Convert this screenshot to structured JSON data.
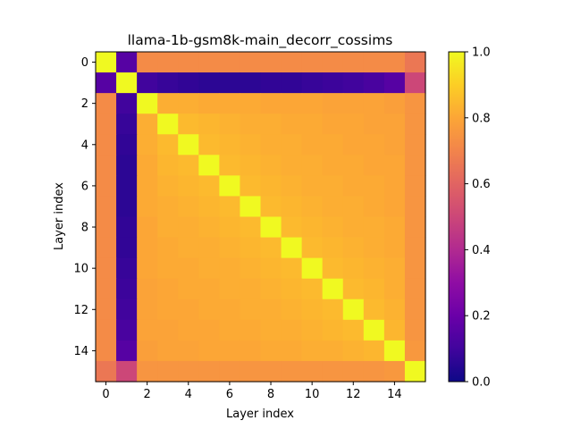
{
  "chart_data": {
    "type": "heatmap",
    "title": "llama-1b-gsm8k-main_decorr_cossims",
    "xlabel": "Layer index",
    "ylabel": "Layer index",
    "x_ticks": [
      0,
      2,
      4,
      6,
      8,
      10,
      12,
      14
    ],
    "y_ticks": [
      0,
      2,
      4,
      6,
      8,
      10,
      12,
      14
    ],
    "x_tick_labels": [
      "0",
      "2",
      "4",
      "6",
      "8",
      "10",
      "12",
      "14"
    ],
    "y_tick_labels": [
      "0",
      "2",
      "4",
      "6",
      "8",
      "10",
      "12",
      "14"
    ],
    "colorbar": {
      "colormap": "plasma",
      "range": [
        0.0,
        1.0
      ],
      "ticks": [
        0.0,
        0.2,
        0.4,
        0.6,
        0.8,
        1.0
      ],
      "tick_labels": [
        "0.0",
        "0.2",
        "0.4",
        "0.6",
        "0.8",
        "1.0"
      ]
    },
    "size": 16,
    "matrix": [
      [
        1.0,
        0.15,
        0.72,
        0.72,
        0.72,
        0.72,
        0.72,
        0.72,
        0.72,
        0.72,
        0.72,
        0.72,
        0.72,
        0.72,
        0.72,
        0.66
      ],
      [
        0.15,
        1.0,
        0.1,
        0.08,
        0.07,
        0.06,
        0.06,
        0.06,
        0.07,
        0.07,
        0.08,
        0.09,
        0.1,
        0.12,
        0.15,
        0.5
      ],
      [
        0.72,
        0.1,
        1.0,
        0.82,
        0.82,
        0.81,
        0.81,
        0.81,
        0.8,
        0.8,
        0.8,
        0.79,
        0.79,
        0.79,
        0.78,
        0.75
      ],
      [
        0.72,
        0.08,
        0.82,
        1.0,
        0.85,
        0.84,
        0.83,
        0.82,
        0.82,
        0.81,
        0.81,
        0.8,
        0.8,
        0.79,
        0.79,
        0.75
      ],
      [
        0.72,
        0.07,
        0.82,
        0.85,
        1.0,
        0.85,
        0.84,
        0.83,
        0.82,
        0.82,
        0.81,
        0.81,
        0.8,
        0.8,
        0.79,
        0.75
      ],
      [
        0.72,
        0.06,
        0.81,
        0.84,
        0.85,
        1.0,
        0.85,
        0.84,
        0.83,
        0.82,
        0.82,
        0.81,
        0.81,
        0.8,
        0.8,
        0.75
      ],
      [
        0.72,
        0.06,
        0.81,
        0.83,
        0.84,
        0.85,
        1.0,
        0.85,
        0.84,
        0.83,
        0.82,
        0.82,
        0.81,
        0.81,
        0.8,
        0.75
      ],
      [
        0.72,
        0.06,
        0.81,
        0.82,
        0.83,
        0.84,
        0.85,
        1.0,
        0.85,
        0.84,
        0.83,
        0.82,
        0.82,
        0.81,
        0.8,
        0.75
      ],
      [
        0.72,
        0.07,
        0.8,
        0.82,
        0.82,
        0.83,
        0.84,
        0.85,
        1.0,
        0.85,
        0.84,
        0.83,
        0.82,
        0.82,
        0.81,
        0.75
      ],
      [
        0.72,
        0.07,
        0.8,
        0.81,
        0.82,
        0.82,
        0.83,
        0.84,
        0.85,
        1.0,
        0.85,
        0.84,
        0.83,
        0.82,
        0.81,
        0.75
      ],
      [
        0.72,
        0.08,
        0.8,
        0.81,
        0.81,
        0.82,
        0.82,
        0.83,
        0.84,
        0.85,
        1.0,
        0.85,
        0.84,
        0.83,
        0.82,
        0.75
      ],
      [
        0.72,
        0.09,
        0.79,
        0.8,
        0.81,
        0.81,
        0.82,
        0.82,
        0.83,
        0.84,
        0.85,
        1.0,
        0.85,
        0.84,
        0.82,
        0.75
      ],
      [
        0.72,
        0.1,
        0.79,
        0.8,
        0.8,
        0.81,
        0.81,
        0.82,
        0.82,
        0.83,
        0.84,
        0.85,
        1.0,
        0.85,
        0.83,
        0.75
      ],
      [
        0.72,
        0.12,
        0.79,
        0.79,
        0.8,
        0.8,
        0.81,
        0.81,
        0.82,
        0.82,
        0.83,
        0.84,
        0.85,
        1.0,
        0.84,
        0.75
      ],
      [
        0.72,
        0.15,
        0.78,
        0.79,
        0.79,
        0.8,
        0.8,
        0.8,
        0.81,
        0.81,
        0.82,
        0.82,
        0.83,
        0.84,
        1.0,
        0.76
      ],
      [
        0.66,
        0.5,
        0.75,
        0.75,
        0.75,
        0.75,
        0.75,
        0.75,
        0.75,
        0.75,
        0.75,
        0.75,
        0.75,
        0.75,
        0.76,
        1.0
      ]
    ]
  }
}
